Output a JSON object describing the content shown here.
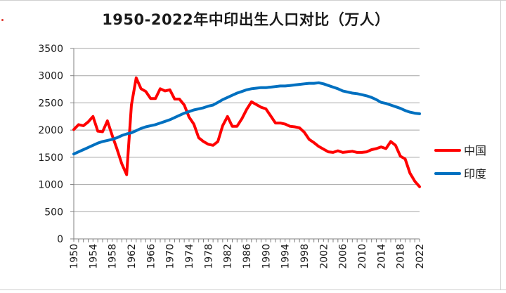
{
  "chart_data": {
    "type": "line",
    "title": "1950-2022年中印出生人口对比（万人）",
    "xlabel": "",
    "ylabel": "",
    "ylim": [
      0,
      3500
    ],
    "yticks": [
      0,
      500,
      1000,
      1500,
      2000,
      2500,
      3000,
      3500
    ],
    "xlim": [
      1950,
      2022
    ],
    "xticks": [
      1950,
      1954,
      1958,
      1962,
      1966,
      1970,
      1974,
      1978,
      1982,
      1986,
      1990,
      1994,
      1998,
      2002,
      2006,
      2010,
      2014,
      2018,
      2022
    ],
    "grid": "horizontal",
    "legend_position": "right",
    "series": [
      {
        "name": "中国",
        "color": "#ff0000",
        "x": [
          1950,
          1951,
          1952,
          1953,
          1954,
          1955,
          1956,
          1957,
          1958,
          1959,
          1960,
          1961,
          1962,
          1963,
          1964,
          1965,
          1966,
          1967,
          1968,
          1969,
          1970,
          1971,
          1972,
          1973,
          1974,
          1975,
          1976,
          1977,
          1978,
          1979,
          1980,
          1981,
          1982,
          1983,
          1984,
          1985,
          1986,
          1987,
          1988,
          1989,
          1990,
          1991,
          1992,
          1993,
          1994,
          1995,
          1996,
          1997,
          1998,
          1999,
          2000,
          2001,
          2002,
          2003,
          2004,
          2005,
          2006,
          2007,
          2008,
          2009,
          2010,
          2011,
          2012,
          2013,
          2014,
          2015,
          2016,
          2017,
          2018,
          2019,
          2020,
          2021,
          2022
        ],
        "values": [
          2010,
          2100,
          2080,
          2150,
          2250,
          1980,
          1970,
          2170,
          1900,
          1650,
          1380,
          1180,
          2460,
          2960,
          2760,
          2710,
          2580,
          2580,
          2760,
          2720,
          2740,
          2570,
          2570,
          2460,
          2240,
          2110,
          1860,
          1790,
          1740,
          1720,
          1790,
          2080,
          2250,
          2070,
          2070,
          2210,
          2380,
          2520,
          2470,
          2420,
          2390,
          2260,
          2130,
          2130,
          2110,
          2070,
          2060,
          2040,
          1960,
          1830,
          1770,
          1700,
          1650,
          1600,
          1590,
          1620,
          1590,
          1600,
          1610,
          1590,
          1590,
          1600,
          1640,
          1660,
          1690,
          1660,
          1790,
          1720,
          1520,
          1470,
          1210,
          1060,
          960
        ]
      },
      {
        "name": "印度",
        "color": "#0070c0",
        "x": [
          1950,
          1951,
          1952,
          1953,
          1954,
          1955,
          1956,
          1957,
          1958,
          1959,
          1960,
          1961,
          1962,
          1963,
          1964,
          1965,
          1966,
          1967,
          1968,
          1969,
          1970,
          1971,
          1972,
          1973,
          1974,
          1975,
          1976,
          1977,
          1978,
          1979,
          1980,
          1981,
          1982,
          1983,
          1984,
          1985,
          1986,
          1987,
          1988,
          1989,
          1990,
          1991,
          1992,
          1993,
          1994,
          1995,
          1996,
          1997,
          1998,
          1999,
          2000,
          2001,
          2002,
          2003,
          2004,
          2005,
          2006,
          2007,
          2008,
          2009,
          2010,
          2011,
          2012,
          2013,
          2014,
          2015,
          2016,
          2017,
          2018,
          2019,
          2020,
          2021,
          2022
        ],
        "values": [
          1560,
          1600,
          1640,
          1680,
          1720,
          1760,
          1790,
          1810,
          1830,
          1860,
          1900,
          1930,
          1950,
          1990,
          2030,
          2060,
          2080,
          2100,
          2130,
          2160,
          2190,
          2230,
          2270,
          2310,
          2340,
          2370,
          2390,
          2410,
          2440,
          2460,
          2510,
          2560,
          2600,
          2640,
          2680,
          2710,
          2740,
          2760,
          2770,
          2780,
          2780,
          2790,
          2800,
          2810,
          2810,
          2820,
          2830,
          2840,
          2850,
          2860,
          2860,
          2870,
          2850,
          2820,
          2790,
          2760,
          2720,
          2700,
          2680,
          2670,
          2650,
          2630,
          2600,
          2560,
          2510,
          2490,
          2460,
          2430,
          2400,
          2360,
          2330,
          2310,
          2300
        ]
      }
    ]
  },
  "legend": [
    {
      "label": "中国",
      "color": "#ff0000"
    },
    {
      "label": "印度",
      "color": "#0070c0"
    }
  ]
}
